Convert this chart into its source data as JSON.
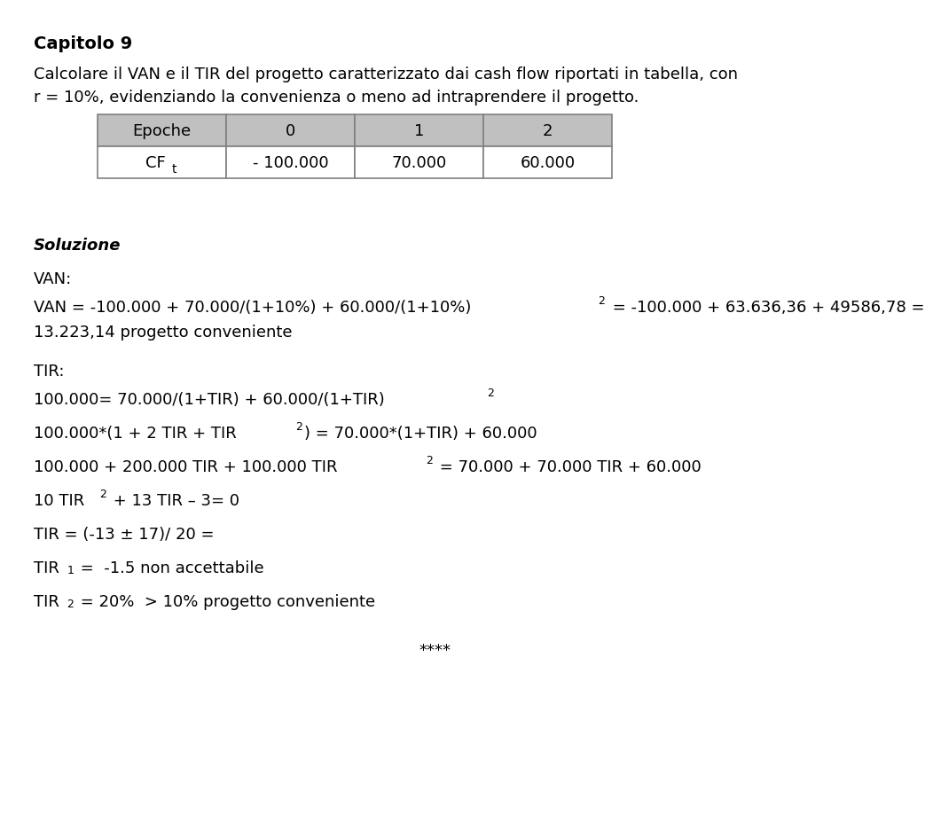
{
  "title": "Capitolo 9",
  "intro_line1": "Calcolare il VAN e il TIR del progetto caratterizzato dai cash flow riportati in tabella, con",
  "intro_line2": "r = 10%, evidenziando la convenienza o meno ad intraprendere il progetto.",
  "table_header": [
    "Epoche",
    "0",
    "1",
    "2"
  ],
  "table_row_label_main": "CF",
  "table_row_label_sub": "t",
  "table_row_values": [
    "- 100.000",
    "70.000",
    "60.000"
  ],
  "section_soluzione": "Soluzione",
  "van_label": "VAN:",
  "van_line1a": "VAN = -100.000 + 70.000/(1+10%) + 60.000/(1+10%)",
  "van_line1_sup": "2",
  "van_line1b": " = -100.000 + 63.636,36 + 49586,78 =",
  "van_line2": "13.223,14 progetto conveniente",
  "tir_label": "TIR:",
  "tir_eq1a": "100.000= 70.000/(1+TIR) + 60.000/(1+TIR)",
  "tir_eq1_sup": "2",
  "tir_eq2a": "100.000*(1 + 2 TIR + TIR",
  "tir_eq2_sup": "2",
  "tir_eq2b": ") = 70.000*(1+TIR) + 60.000",
  "tir_eq3a": "100.000 + 200.000 TIR + 100.000 TIR",
  "tir_eq3_sup": "2",
  "tir_eq3b": " = 70.000 + 70.000 TIR + 60.000",
  "tir_eq4a": "10 TIR",
  "tir_eq4_sup": "2",
  "tir_eq4b": " + 13 TIR – 3= 0",
  "tir_eq5": "TIR = (-13 ± 17)/ 20 =",
  "tir_r1a": "TIR",
  "tir_r1_sub": "1",
  "tir_r1b": " =  -1.5 non accettabile",
  "tir_r2a": "TIR",
  "tir_r2_sub": "2",
  "tir_r2b": " = 20%  > 10% progetto conveniente",
  "footer": "****",
  "bg_color": "#ffffff",
  "text_color": "#000000",
  "table_header_bg": "#c0c0c0",
  "table_border_color": "#808080",
  "title_fontsize": 14,
  "body_fontsize": 13
}
